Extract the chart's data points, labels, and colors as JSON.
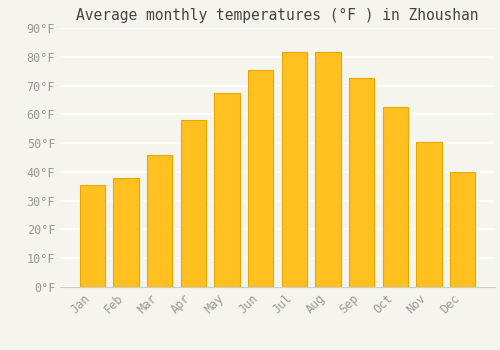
{
  "title": "Average monthly temperatures (°F ) in Zhoushan",
  "months": [
    "Jan",
    "Feb",
    "Mar",
    "Apr",
    "May",
    "Jun",
    "Jul",
    "Aug",
    "Sep",
    "Oct",
    "Nov",
    "Dec"
  ],
  "values": [
    35.5,
    38.0,
    46.0,
    58.0,
    67.5,
    75.5,
    81.5,
    81.5,
    72.5,
    62.5,
    50.5,
    40.0
  ],
  "bar_color": "#FFC020",
  "bar_edge_color": "#E8A800",
  "background_color": "#F5F5EE",
  "grid_color": "#FFFFFF",
  "tick_label_color": "#999999",
  "title_color": "#444444",
  "ylim": [
    0,
    90
  ],
  "ytick_step": 10,
  "title_fontsize": 10.5,
  "tick_fontsize": 8.5,
  "font_family": "monospace",
  "bar_width": 0.75
}
